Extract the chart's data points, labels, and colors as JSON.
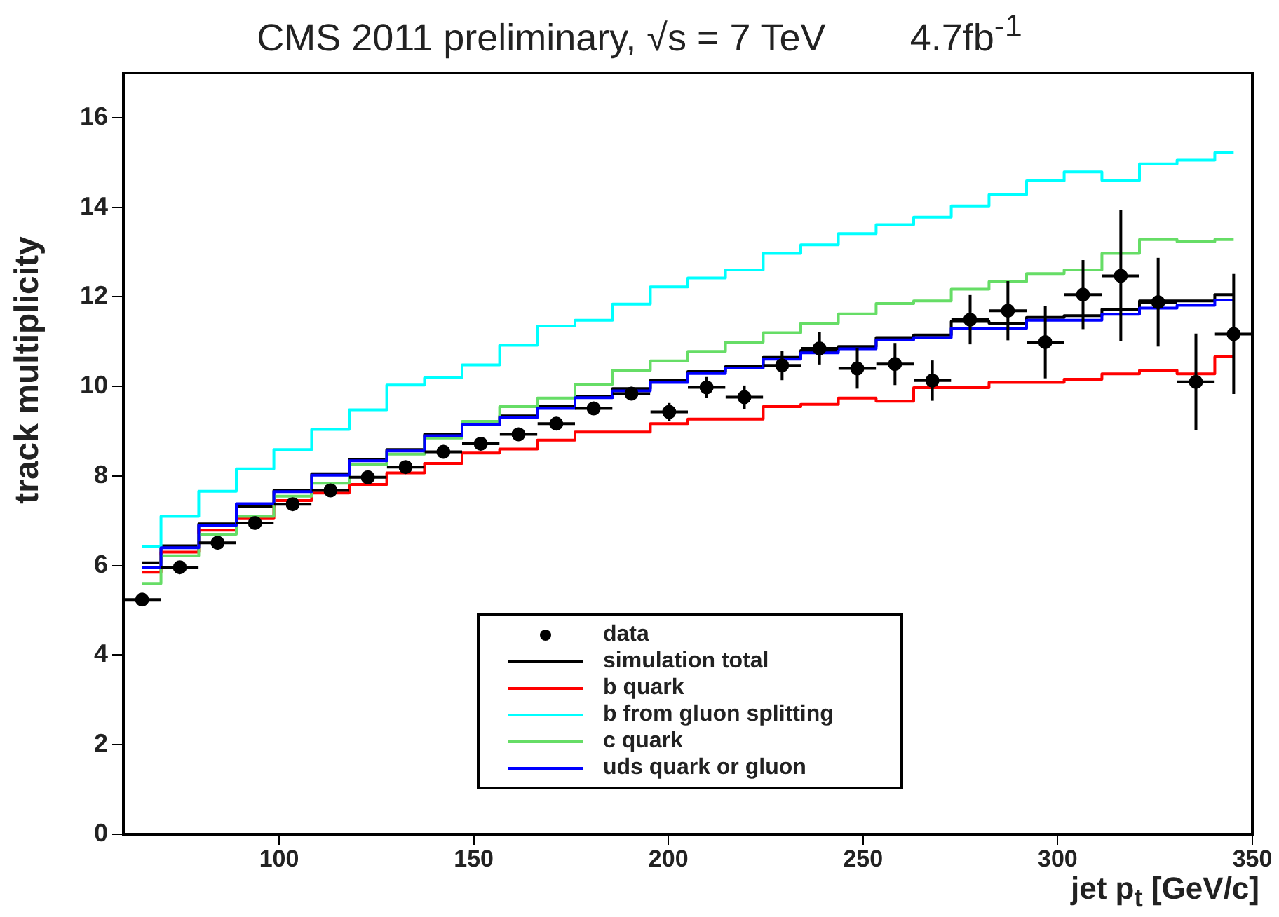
{
  "chart_data": {
    "type": "step",
    "title": "CMS 2011 preliminary, √s = 7 TeV        4.7fb$^{-1}$",
    "xlabel": "jet p$_{t}$ [GeV/c]",
    "ylabel": "track multiplicity",
    "x": [
      64.8,
      74.5,
      84.2,
      93.8,
      103.5,
      113.2,
      122.8,
      132.5,
      142.2,
      151.8,
      161.5,
      171.2,
      180.8,
      190.5,
      200.2,
      209.8,
      219.5,
      229.2,
      238.8,
      248.5,
      258.2,
      267.8,
      277.5,
      287.2,
      296.8,
      306.5,
      316.2,
      325.8,
      335.5,
      345.2
    ],
    "xlim": [
      60,
      350
    ],
    "xticks": [
      100,
      150,
      200,
      250,
      300,
      350
    ],
    "ylim": [
      0,
      17
    ],
    "yticks": [
      0,
      2,
      4,
      6,
      8,
      10,
      12,
      14,
      16
    ],
    "grid": false,
    "legend": "bottom",
    "line_style": "solid",
    "series": [
      {
        "name": "data",
        "type": "scatter",
        "marker": "circle",
        "color": "#000000",
        "values": [
          5.24,
          5.96,
          6.51,
          6.95,
          7.37,
          7.68,
          7.97,
          8.2,
          8.54,
          8.72,
          8.93,
          9.17,
          9.51,
          9.84,
          9.43,
          9.98,
          9.76,
          10.47,
          10.85,
          10.4,
          10.5,
          10.13,
          11.49,
          11.69,
          10.99,
          12.05,
          12.47,
          11.88,
          10.1,
          11.17
        ],
        "errors": [
          null,
          null,
          null,
          null,
          null,
          null,
          null,
          null,
          null,
          null,
          null,
          null,
          null,
          0.15,
          0.2,
          0.23,
          0.26,
          0.33,
          0.36,
          0.45,
          0.47,
          0.45,
          0.55,
          0.66,
          0.81,
          0.77,
          1.46,
          0.99,
          1.08,
          1.34
        ],
        "xerrors": [
          4.8,
          4.8,
          4.8,
          4.8,
          4.8,
          4.8,
          4.8,
          4.8,
          4.8,
          4.8,
          4.8,
          4.8,
          4.8,
          4.8,
          4.8,
          4.8,
          4.8,
          4.8,
          4.8,
          4.8,
          4.8,
          4.8,
          4.8,
          4.8,
          4.8,
          4.8,
          4.8,
          4.8,
          4.8,
          4.8
        ]
      },
      {
        "name": "simulation total",
        "color": "#000000",
        "values": [
          6.06,
          6.44,
          6.93,
          7.32,
          7.68,
          8.05,
          8.37,
          8.59,
          8.93,
          9.17,
          9.34,
          9.56,
          9.77,
          9.95,
          10.13,
          10.33,
          10.44,
          10.65,
          10.8,
          10.89,
          11.09,
          11.15,
          11.45,
          11.41,
          11.54,
          11.58,
          11.72,
          11.91,
          11.91,
          12.05
        ]
      },
      {
        "name": "b quark",
        "color": "#ff0000",
        "values": [
          5.85,
          6.3,
          6.79,
          7.05,
          7.45,
          7.62,
          7.81,
          8.07,
          8.28,
          8.51,
          8.6,
          8.8,
          8.98,
          8.98,
          9.17,
          9.27,
          9.27,
          9.55,
          9.6,
          9.74,
          9.67,
          9.97,
          9.97,
          10.09,
          10.09,
          10.16,
          10.28,
          10.36,
          10.28,
          10.66
        ]
      },
      {
        "name": "b from gluon splitting",
        "color": "#00ffff",
        "values": [
          6.43,
          7.1,
          7.66,
          8.16,
          8.59,
          9.04,
          9.48,
          10.03,
          10.19,
          10.48,
          10.92,
          11.35,
          11.48,
          11.84,
          12.22,
          12.42,
          12.6,
          12.97,
          13.16,
          13.41,
          13.61,
          13.78,
          14.03,
          14.28,
          14.59,
          14.79,
          14.6,
          14.97,
          15.05,
          15.22
        ]
      },
      {
        "name": "c quark",
        "color": "#66dd66",
        "values": [
          5.6,
          6.22,
          6.7,
          7.1,
          7.55,
          7.84,
          8.26,
          8.49,
          8.85,
          9.22,
          9.55,
          9.74,
          10.05,
          10.36,
          10.57,
          10.78,
          10.99,
          11.2,
          11.41,
          11.62,
          11.85,
          11.91,
          12.17,
          12.34,
          12.52,
          12.6,
          12.97,
          13.28,
          13.23,
          13.28
        ]
      },
      {
        "name": "uds quark or gluon",
        "color": "#0000ff",
        "values": [
          5.95,
          6.4,
          6.9,
          7.38,
          7.65,
          8.02,
          8.34,
          8.56,
          8.9,
          9.14,
          9.31,
          9.51,
          9.75,
          9.9,
          10.09,
          10.29,
          10.41,
          10.61,
          10.75,
          10.84,
          11.04,
          11.09,
          11.3,
          11.3,
          11.48,
          11.48,
          11.61,
          11.75,
          11.81,
          11.93
        ]
      }
    ]
  }
}
